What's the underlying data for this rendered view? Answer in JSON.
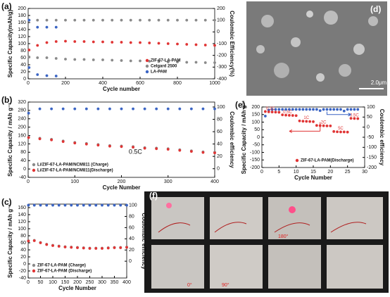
{
  "chart_data": [
    {
      "type": "scatter",
      "label": "(a)",
      "xlabel": "Cycle number",
      "ylabel": "Specific Capacity(mAh/g)",
      "y2label": "Coulombic Efficiency(%)",
      "x": [
        5,
        50,
        100,
        150,
        200,
        250,
        300,
        350,
        400,
        450,
        500,
        550,
        600,
        650,
        700,
        750,
        800,
        850,
        900,
        950,
        1000
      ],
      "xlim": [
        0,
        1000
      ],
      "xticks": [
        0,
        200,
        400,
        600,
        800,
        1000
      ],
      "ylim": [
        0,
        200
      ],
      "yticks": [
        0,
        20,
        40,
        60,
        80,
        100,
        120,
        140,
        160,
        180,
        200
      ],
      "y2lim": [
        -400,
        200
      ],
      "y2ticks": [
        -400,
        -300,
        -200,
        -100,
        0,
        100,
        200
      ],
      "legend": "lower right",
      "series": [
        {
          "name": "ZIF-67-LA-PAM",
          "color": "#e03434",
          "values": [
            82,
            95,
            103,
            106,
            107,
            106,
            106,
            105,
            105,
            104,
            104,
            103,
            103,
            102,
            101,
            100,
            99,
            98,
            97,
            96,
            95
          ]
        },
        {
          "name": "Celgard 2500",
          "color": "#8a8a8a",
          "values": [
            62,
            60,
            60,
            58,
            56,
            55,
            55,
            54,
            54,
            53,
            52,
            51,
            51,
            50,
            49,
            48,
            48,
            47,
            47,
            46,
            46
          ]
        },
        {
          "name": "LA-PAM",
          "color": "#3a64c4",
          "values": [
            32,
            12,
            9,
            8,
            null,
            null,
            null,
            null,
            null,
            null,
            null,
            null,
            null,
            null,
            null,
            null,
            null,
            null,
            null,
            null,
            null
          ]
        },
        {
          "color": "#8a8a8a",
          "axis": "y2",
          "values": [
            100,
            100,
            100,
            100,
            100,
            100,
            100,
            100,
            100,
            100,
            100,
            100,
            100,
            100,
            100,
            100,
            100,
            100,
            100,
            100,
            100
          ]
        },
        {
          "color": "#3a64c4",
          "axis": "y2",
          "values": [
            100,
            40,
            40,
            40,
            null,
            null,
            null,
            null,
            null,
            null,
            null,
            null,
            null,
            null,
            null,
            null,
            null,
            null,
            null,
            null,
            null
          ]
        }
      ]
    },
    {
      "type": "scatter",
      "label": "(b)",
      "xlabel": "Cycle Number",
      "ylabel": "Specific Capacity / mAh g⁻¹",
      "y2label": "Coulombic efficiency",
      "x": [
        1,
        25,
        50,
        75,
        100,
        125,
        150,
        175,
        200,
        225,
        250,
        275,
        300,
        325,
        350,
        375,
        400
      ],
      "xlim": [
        0,
        400
      ],
      "xticks": [
        0,
        100,
        200,
        300,
        400
      ],
      "ylim": [
        -40,
        320
      ],
      "yticks": [
        -40,
        0,
        40,
        80,
        120,
        160,
        200,
        240,
        280,
        320
      ],
      "y2lim": [
        -14,
        108
      ],
      "y2ticks": [
        0,
        20,
        40,
        60,
        80,
        100
      ],
      "legend": "lower left",
      "annotations": [
        "0.5C"
      ],
      "series": [
        {
          "name": "Li/ZIF-67-LA-PAM/NCM811 (Charge)",
          "color": "#8a8a8a",
          "values": [
            153,
            147,
            142,
            134,
            127,
            122,
            117,
            112,
            110,
            107,
            102,
            100,
            97,
            92,
            87,
            82,
            80
          ]
        },
        {
          "name": "Li/ZIF-67-LA-PAM/NCM811(Discharge)",
          "color": "#e03434",
          "values": [
            150,
            144,
            139,
            131,
            124,
            119,
            114,
            109,
            107,
            104,
            99,
            97,
            94,
            89,
            84,
            79,
            77
          ]
        },
        {
          "color": "#3a64c4",
          "axis": "y2",
          "values": [
            90,
            97,
            97,
            97,
            97,
            97,
            97,
            97,
            97,
            97,
            97,
            97,
            97,
            97,
            97,
            97,
            97
          ]
        }
      ]
    },
    {
      "type": "scatter",
      "label": "(c)",
      "xlabel": "Cycle Number",
      "ylabel": "Specific Capacity / mAh g⁻¹",
      "y2label": "Coulombic efficiency",
      "x": [
        1,
        25,
        50,
        75,
        100,
        125,
        150,
        175,
        200,
        225,
        250,
        275,
        300,
        325,
        350,
        375,
        400
      ],
      "xlim": [
        0,
        400
      ],
      "xticks": [
        0,
        50,
        100,
        150,
        200,
        250,
        300,
        350,
        400
      ],
      "ylim": [
        -40,
        170
      ],
      "yticks": [
        -40,
        -20,
        0,
        20,
        40,
        60,
        80,
        100,
        120,
        140,
        160
      ],
      "y2lim": [
        -30,
        102
      ],
      "y2ticks": [
        0,
        20,
        40,
        60,
        80,
        100
      ],
      "legend": "lower left",
      "series": [
        {
          "name": "ZIF-67-LA-PAM (Charge)",
          "color": "#8a8a8a",
          "values": [
            66,
            67,
            61,
            56,
            53,
            51,
            49,
            48,
            47,
            46,
            45,
            45,
            45,
            46,
            47,
            47,
            48
          ]
        },
        {
          "name": "ZIF-67-LA-PAM (Discharge)",
          "color": "#e03434",
          "values": [
            65,
            66,
            60,
            55,
            52,
            50,
            48,
            47,
            46,
            45,
            44,
            44,
            44,
            45,
            46,
            46,
            47
          ]
        },
        {
          "color": "#3a64c4",
          "axis": "y2",
          "values": [
            100,
            100,
            100,
            100,
            100,
            100,
            100,
            100,
            100,
            100,
            100,
            100,
            100,
            100,
            100,
            100,
            100
          ]
        }
      ]
    },
    {
      "type": "scatter",
      "label": "(e)",
      "xlabel": "Cycle Number",
      "ylabel": "Specific Capacity / mAh g⁻¹",
      "y2label": "Coulombic efficiency",
      "x": [
        1,
        2,
        3,
        4,
        5,
        6,
        7,
        8,
        9,
        10,
        11,
        12,
        13,
        14,
        15,
        16,
        17,
        18,
        19,
        20,
        21,
        22,
        23,
        24,
        25,
        26,
        27,
        28
      ],
      "xlim": [
        0,
        30
      ],
      "xticks": [
        0,
        5,
        10,
        15,
        20,
        25,
        30
      ],
      "ylim": [
        -200,
        200
      ],
      "yticks": [
        -200,
        -150,
        -100,
        -50,
        0,
        50,
        100,
        150,
        200
      ],
      "y2lim": [
        -200,
        100
      ],
      "y2ticks": [
        -200,
        -150,
        -100,
        -50,
        0,
        50,
        100
      ],
      "legend": "lower right",
      "annotations": [
        "0.2C",
        "0.5C",
        "1C",
        "2C",
        "5C",
        "0.5C"
      ],
      "series": [
        {
          "color": "#3a64c4",
          "axis": "y2",
          "values": [
            55,
            85,
            88,
            88,
            88,
            88,
            88,
            88,
            88,
            88,
            88,
            88,
            88,
            88,
            88,
            88,
            82,
            88,
            88,
            88,
            88,
            88,
            88,
            80,
            88,
            88,
            88,
            88
          ]
        },
        {
          "name": "ZIF-67-LA-PAM(Discharge)",
          "color": "#e03434",
          "values": [
            170,
            168,
            167,
            166,
            165,
            148,
            146,
            145,
            144,
            143,
            108,
            106,
            105,
            104,
            103,
            78,
            77,
            76,
            75,
            75,
            38,
            36,
            35,
            35,
            34,
            125,
            124,
            123
          ]
        }
      ]
    }
  ],
  "image_d": {
    "label": "(d)",
    "scale": "2.0μm"
  },
  "image_f": {
    "label": "(f)",
    "angles": [
      "0°",
      "90°",
      "180°"
    ]
  }
}
